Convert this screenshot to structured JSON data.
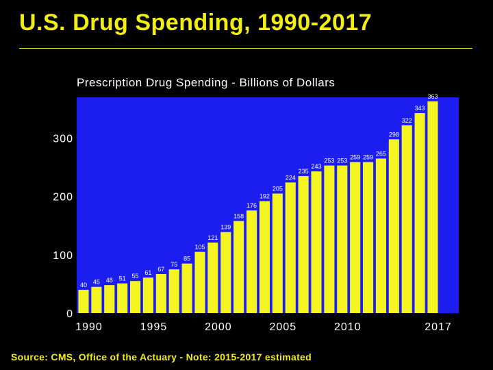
{
  "slide": {
    "title": "U.S. Drug Spending, 1990-2017",
    "footer": "Source: CMS, Office of the Actuary - Note: 2015-2017 estimated"
  },
  "colors": {
    "background": "#000000",
    "plot_area": "#1c1ef0",
    "bar": "#f4f420",
    "heading": "#f2ee14"
  },
  "chart_data": {
    "type": "bar",
    "title": "Prescription Drug Spending - Billions of Dollars",
    "xlabel": "",
    "ylabel": "",
    "ylim": [
      0,
      370
    ],
    "y_ticks": [
      0,
      100,
      200,
      300
    ],
    "x_tick_labels": [
      "1990",
      "1995",
      "2000",
      "2005",
      "2010",
      "2017"
    ],
    "x_tick_years": [
      1990,
      1995,
      2000,
      2005,
      2010,
      2017
    ],
    "categories": [
      1990,
      1991,
      1992,
      1993,
      1994,
      1995,
      1996,
      1997,
      1998,
      1999,
      2000,
      2001,
      2002,
      2003,
      2004,
      2005,
      2006,
      2007,
      2008,
      2009,
      2010,
      2011,
      2012,
      2013,
      2014,
      2015,
      2016,
      2017
    ],
    "values": [
      40,
      45,
      48,
      51,
      55,
      61,
      67,
      75,
      85,
      105,
      121,
      139,
      158,
      176,
      192,
      205,
      224,
      235,
      243,
      253,
      253,
      259,
      259,
      265,
      298,
      322,
      343,
      363
    ],
    "grid": false,
    "legend": "none"
  }
}
